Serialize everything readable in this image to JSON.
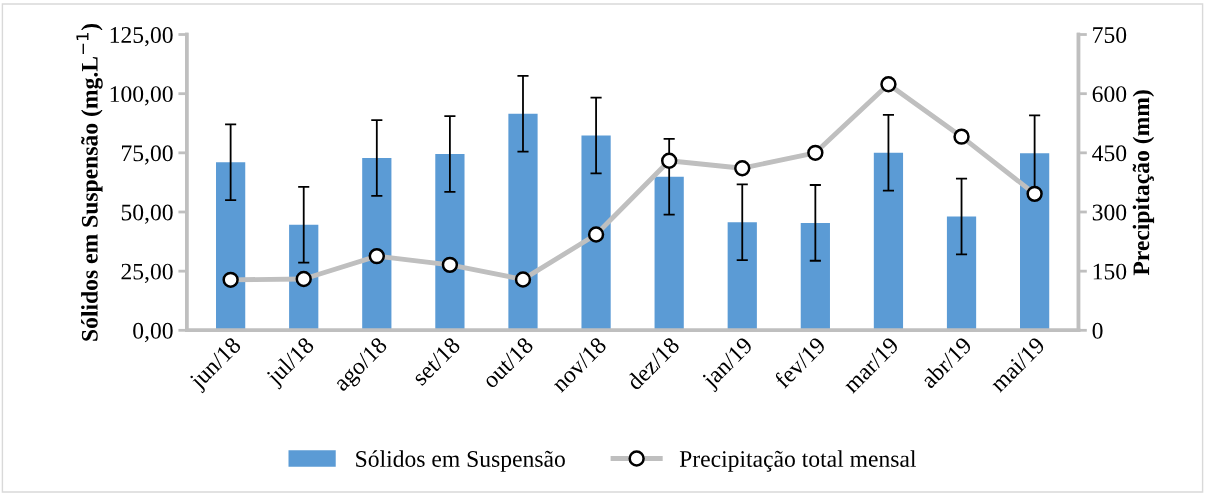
{
  "chart_data": {
    "type": "bar",
    "categories": [
      "jun/18",
      "jul/18",
      "ago/18",
      "set/18",
      "out/18",
      "nov/18",
      "dez/18",
      "jan/19",
      "fev/19",
      "mar/19",
      "abr/19",
      "mai/19"
    ],
    "series": [
      {
        "name": "Sólidos em Suspensão",
        "color": "#5b9bd5",
        "values": [
          71.0,
          44.6,
          72.8,
          74.5,
          91.5,
          82.3,
          64.9,
          45.7,
          45.4,
          75.0,
          48.1,
          74.8
        ],
        "errors": [
          16,
          16,
          16,
          16,
          16,
          16,
          16,
          16,
          16,
          16,
          16,
          16
        ]
      },
      {
        "name": "Precipitação total mensal",
        "type": "line",
        "axis": "y2",
        "color": "#bfbfbf",
        "marker": "circle",
        "line_style": "solid",
        "values": [
          128,
          130,
          188,
          166,
          129,
          243,
          430,
          411,
          450,
          624,
          491,
          346
        ]
      }
    ],
    "ylabel": "Sólidos em Suspensão (mg.L$^{−1}$)",
    "y2label": "Precipitação (mm)",
    "ylim": [
      0,
      125
    ],
    "yticks": [
      {
        "value": 0,
        "label": "0,00"
      },
      {
        "value": 25,
        "label": "25,00"
      },
      {
        "value": 50,
        "label": "50,00"
      },
      {
        "value": 75,
        "label": "75,00"
      },
      {
        "value": 100,
        "label": "100,00"
      },
      {
        "value": 125,
        "label": "125,00"
      }
    ],
    "y2lim": [
      0,
      750
    ],
    "y2ticks": [
      0,
      150,
      300,
      450,
      600,
      750
    ],
    "grid": false,
    "legend": "bottom"
  }
}
